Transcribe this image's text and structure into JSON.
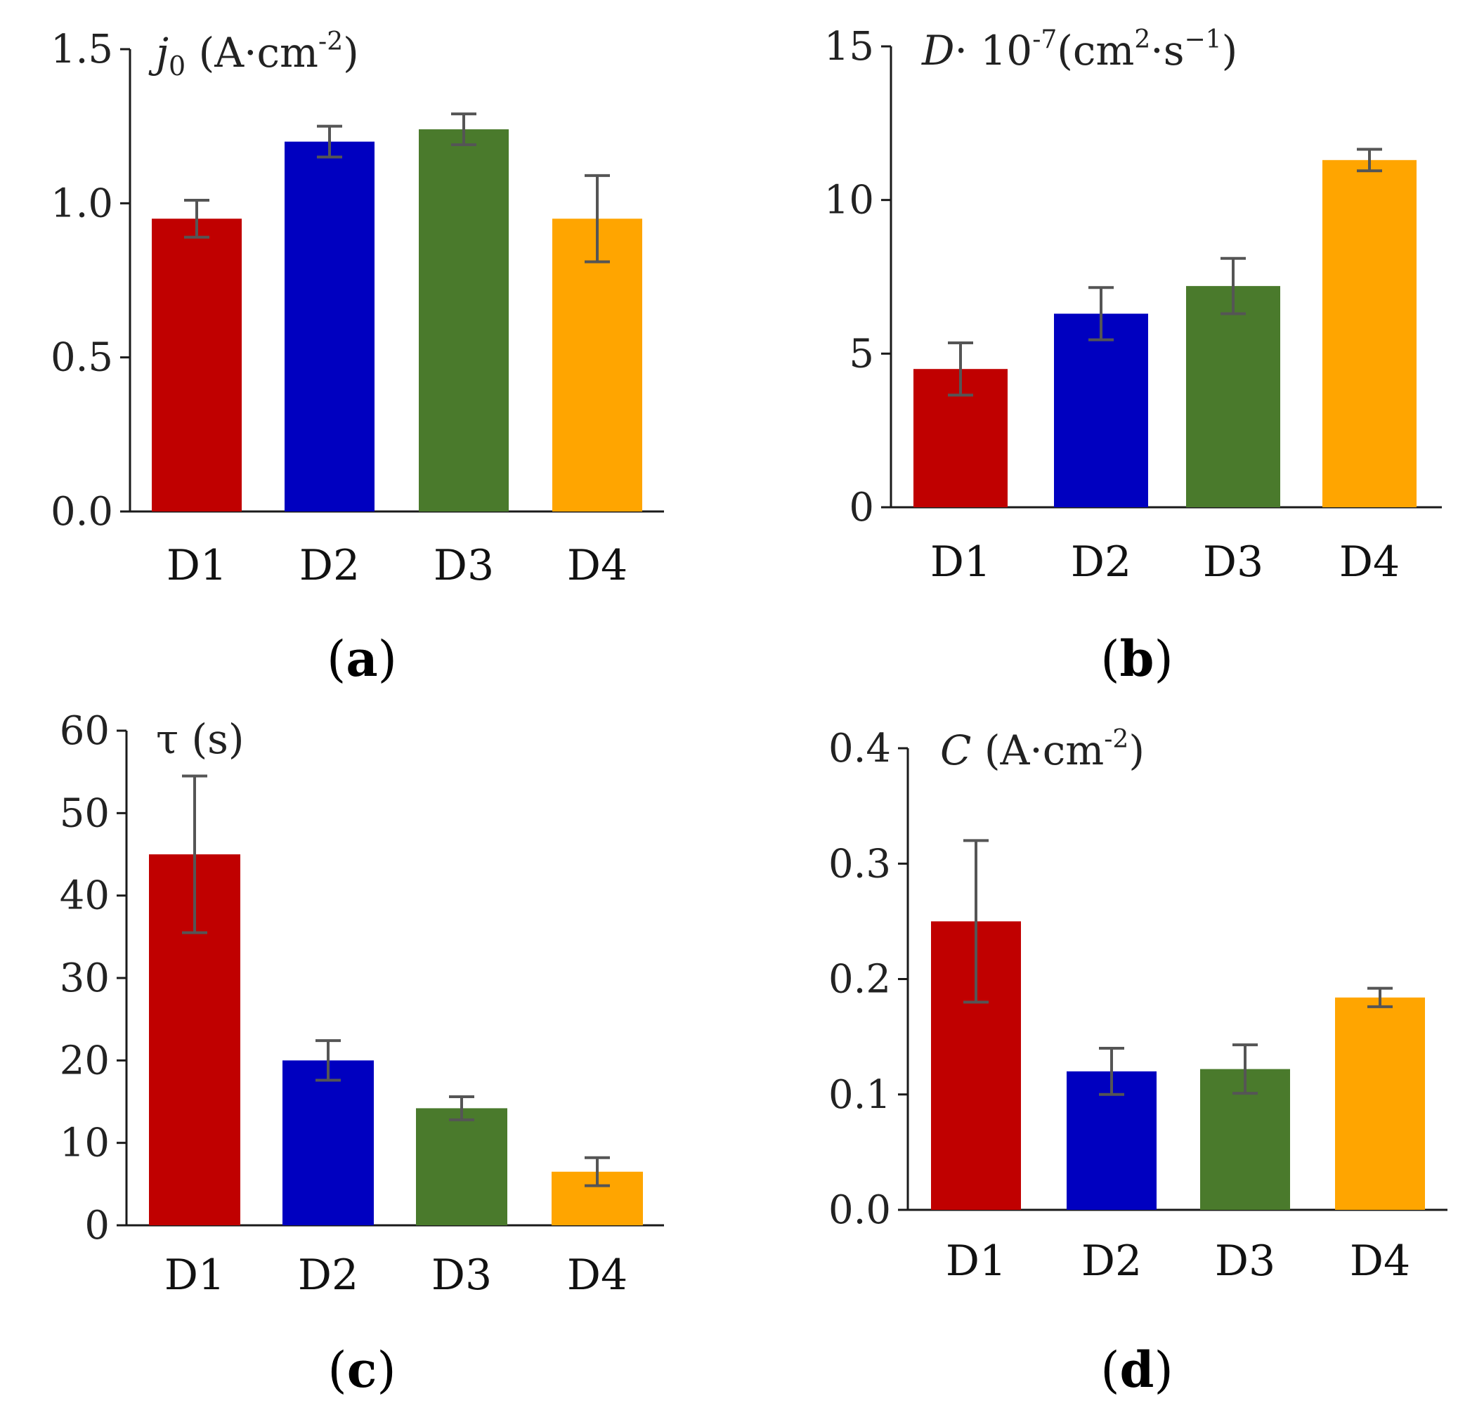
{
  "chart_data": [
    {
      "type": "bar",
      "panel": "a",
      "title_parts": [
        "j",
        "0",
        " (A·cm",
        "-2",
        ")"
      ],
      "categories": [
        "D1",
        "D2",
        "D3",
        "D4"
      ],
      "values": [
        0.95,
        1.2,
        1.24,
        0.95
      ],
      "errors": [
        0.06,
        0.05,
        0.05,
        0.14
      ],
      "colors": [
        "#c00000",
        "#0000c0",
        "#4a7a2c",
        "#ffa500"
      ],
      "ylim": [
        0,
        1.5
      ],
      "yticks": [
        0,
        0.5,
        1.0,
        1.5
      ],
      "ytick_labels": [
        "0.0",
        "0.5",
        "1.0",
        "1.5"
      ],
      "label": "a"
    },
    {
      "type": "bar",
      "panel": "b",
      "title_parts": [
        "D",
        "· 10",
        "-7",
        "(cm",
        "2",
        "·s",
        "−1",
        ")"
      ],
      "categories": [
        "D1",
        "D2",
        "D3",
        "D4"
      ],
      "values": [
        4.5,
        6.3,
        7.2,
        11.3
      ],
      "errors": [
        0.85,
        0.85,
        0.9,
        0.35
      ],
      "colors": [
        "#c00000",
        "#0000c0",
        "#4a7a2c",
        "#ffa500"
      ],
      "ylim": [
        0,
        15
      ],
      "yticks": [
        0,
        5,
        10,
        15
      ],
      "ytick_labels": [
        "0",
        "5",
        "10",
        "15"
      ],
      "label": "b"
    },
    {
      "type": "bar",
      "panel": "c",
      "title_parts": [
        "τ (s)"
      ],
      "categories": [
        "D1",
        "D2",
        "D3",
        "D4"
      ],
      "values": [
        45,
        20,
        14.2,
        6.5
      ],
      "errors": [
        9.5,
        2.4,
        1.4,
        1.7
      ],
      "colors": [
        "#c00000",
        "#0000c0",
        "#4a7a2c",
        "#ffa500"
      ],
      "ylim": [
        0,
        60
      ],
      "yticks": [
        0,
        10,
        20,
        30,
        40,
        50,
        60
      ],
      "ytick_labels": [
        "0",
        "10",
        "20",
        "30",
        "40",
        "50",
        "60"
      ],
      "label": "c"
    },
    {
      "type": "bar",
      "panel": "d",
      "title_parts": [
        "C",
        " (A·cm",
        "-2",
        ")"
      ],
      "categories": [
        "D1",
        "D2",
        "D3",
        "D4"
      ],
      "values": [
        0.25,
        0.12,
        0.122,
        0.184
      ],
      "errors": [
        0.07,
        0.02,
        0.021,
        0.008
      ],
      "colors": [
        "#c00000",
        "#0000c0",
        "#4a7a2c",
        "#ffa500"
      ],
      "ylim": [
        0,
        0.4
      ],
      "yticks": [
        0,
        0.1,
        0.2,
        0.3,
        0.4
      ],
      "ytick_labels": [
        "0.0",
        "0.1",
        "0.2",
        "0.3",
        "0.4"
      ],
      "label": "d"
    }
  ]
}
